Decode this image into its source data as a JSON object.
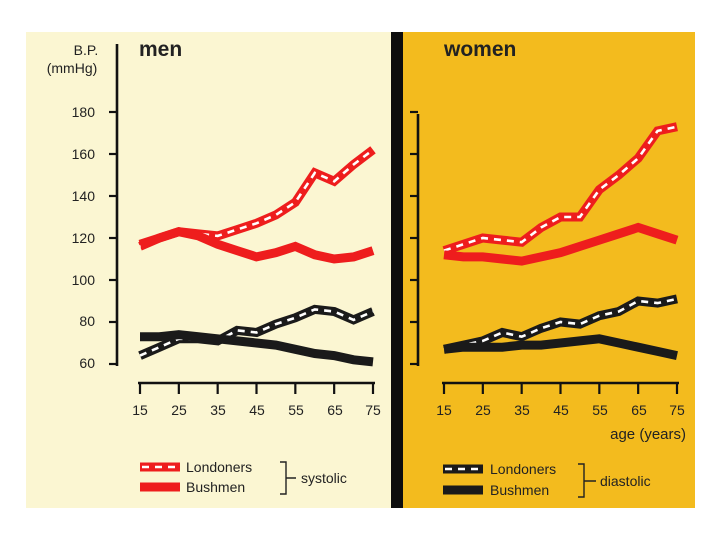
{
  "colors": {
    "men_bg": "#fbf6d2",
    "women_bg": "#f3bb1e",
    "divider": "#0d0d0d",
    "red": "#ee1d1d",
    "black": "#1a1a1a",
    "dash": "#ffffff",
    "text": "#222222"
  },
  "chart_data": [
    {
      "type": "line",
      "title": "men",
      "ylabel": "B.P.",
      "yunit": "(mmHg)",
      "xlabel": "",
      "x": [
        15,
        20,
        25,
        30,
        35,
        40,
        45,
        50,
        55,
        60,
        65,
        70,
        75
      ],
      "xticks": [
        "15",
        "25",
        "35",
        "45",
        "55",
        "65",
        "75"
      ],
      "yticks": [
        "60",
        "80",
        "100",
        "120",
        "140",
        "160",
        "180"
      ],
      "ylim": [
        60,
        180
      ],
      "series": [
        {
          "name": "Londoners systolic",
          "style": "red-dashed",
          "values": [
            116,
            120,
            123,
            122,
            121,
            124,
            127,
            131,
            137,
            151,
            147,
            155,
            162
          ]
        },
        {
          "name": "Bushmen systolic",
          "style": "red-solid",
          "values": [
            117,
            120,
            123,
            121,
            117,
            114,
            111,
            113,
            116,
            112,
            110,
            111,
            114
          ]
        },
        {
          "name": "Londoners diastolic",
          "style": "black-dashed",
          "values": [
            64,
            68,
            72,
            72,
            71,
            76,
            75,
            79,
            82,
            86,
            85,
            81,
            85
          ]
        },
        {
          "name": "Bushmen diastolic",
          "style": "black-solid",
          "values": [
            73,
            73,
            74,
            73,
            72,
            71,
            70,
            69,
            67,
            65,
            64,
            62,
            61
          ]
        }
      ],
      "legend": {
        "group": "systolic",
        "entries": [
          {
            "label": "Londoners",
            "style": "red-dashed"
          },
          {
            "label": "Bushmen",
            "style": "red-solid"
          }
        ]
      }
    },
    {
      "type": "line",
      "title": "women",
      "xlabel": "age (years)",
      "x": [
        15,
        20,
        25,
        30,
        35,
        40,
        45,
        50,
        55,
        60,
        65,
        70,
        75
      ],
      "xticks": [
        "15",
        "25",
        "35",
        "45",
        "55",
        "65",
        "75"
      ],
      "ylim": [
        60,
        180
      ],
      "series": [
        {
          "name": "Londoners systolic",
          "style": "red-dashed",
          "values": [
            114,
            117,
            120,
            119,
            118,
            125,
            130,
            130,
            143,
            150,
            158,
            171,
            173
          ]
        },
        {
          "name": "Bushmen systolic",
          "style": "red-solid",
          "values": [
            112,
            111,
            111,
            110,
            109,
            111,
            113,
            116,
            119,
            122,
            125,
            122,
            119
          ]
        },
        {
          "name": "Londoners diastolic",
          "style": "black-dashed",
          "values": [
            67,
            69,
            71,
            75,
            73,
            77,
            80,
            79,
            83,
            85,
            90,
            89,
            91
          ]
        },
        {
          "name": "Bushmen diastolic",
          "style": "black-solid",
          "values": [
            67,
            68,
            68,
            68,
            69,
            69,
            70,
            71,
            72,
            70,
            68,
            66,
            64
          ]
        }
      ],
      "legend": {
        "group": "diastolic",
        "entries": [
          {
            "label": "Londoners",
            "style": "black-dashed"
          },
          {
            "label": "Bushmen",
            "style": "black-solid"
          }
        ]
      }
    }
  ]
}
